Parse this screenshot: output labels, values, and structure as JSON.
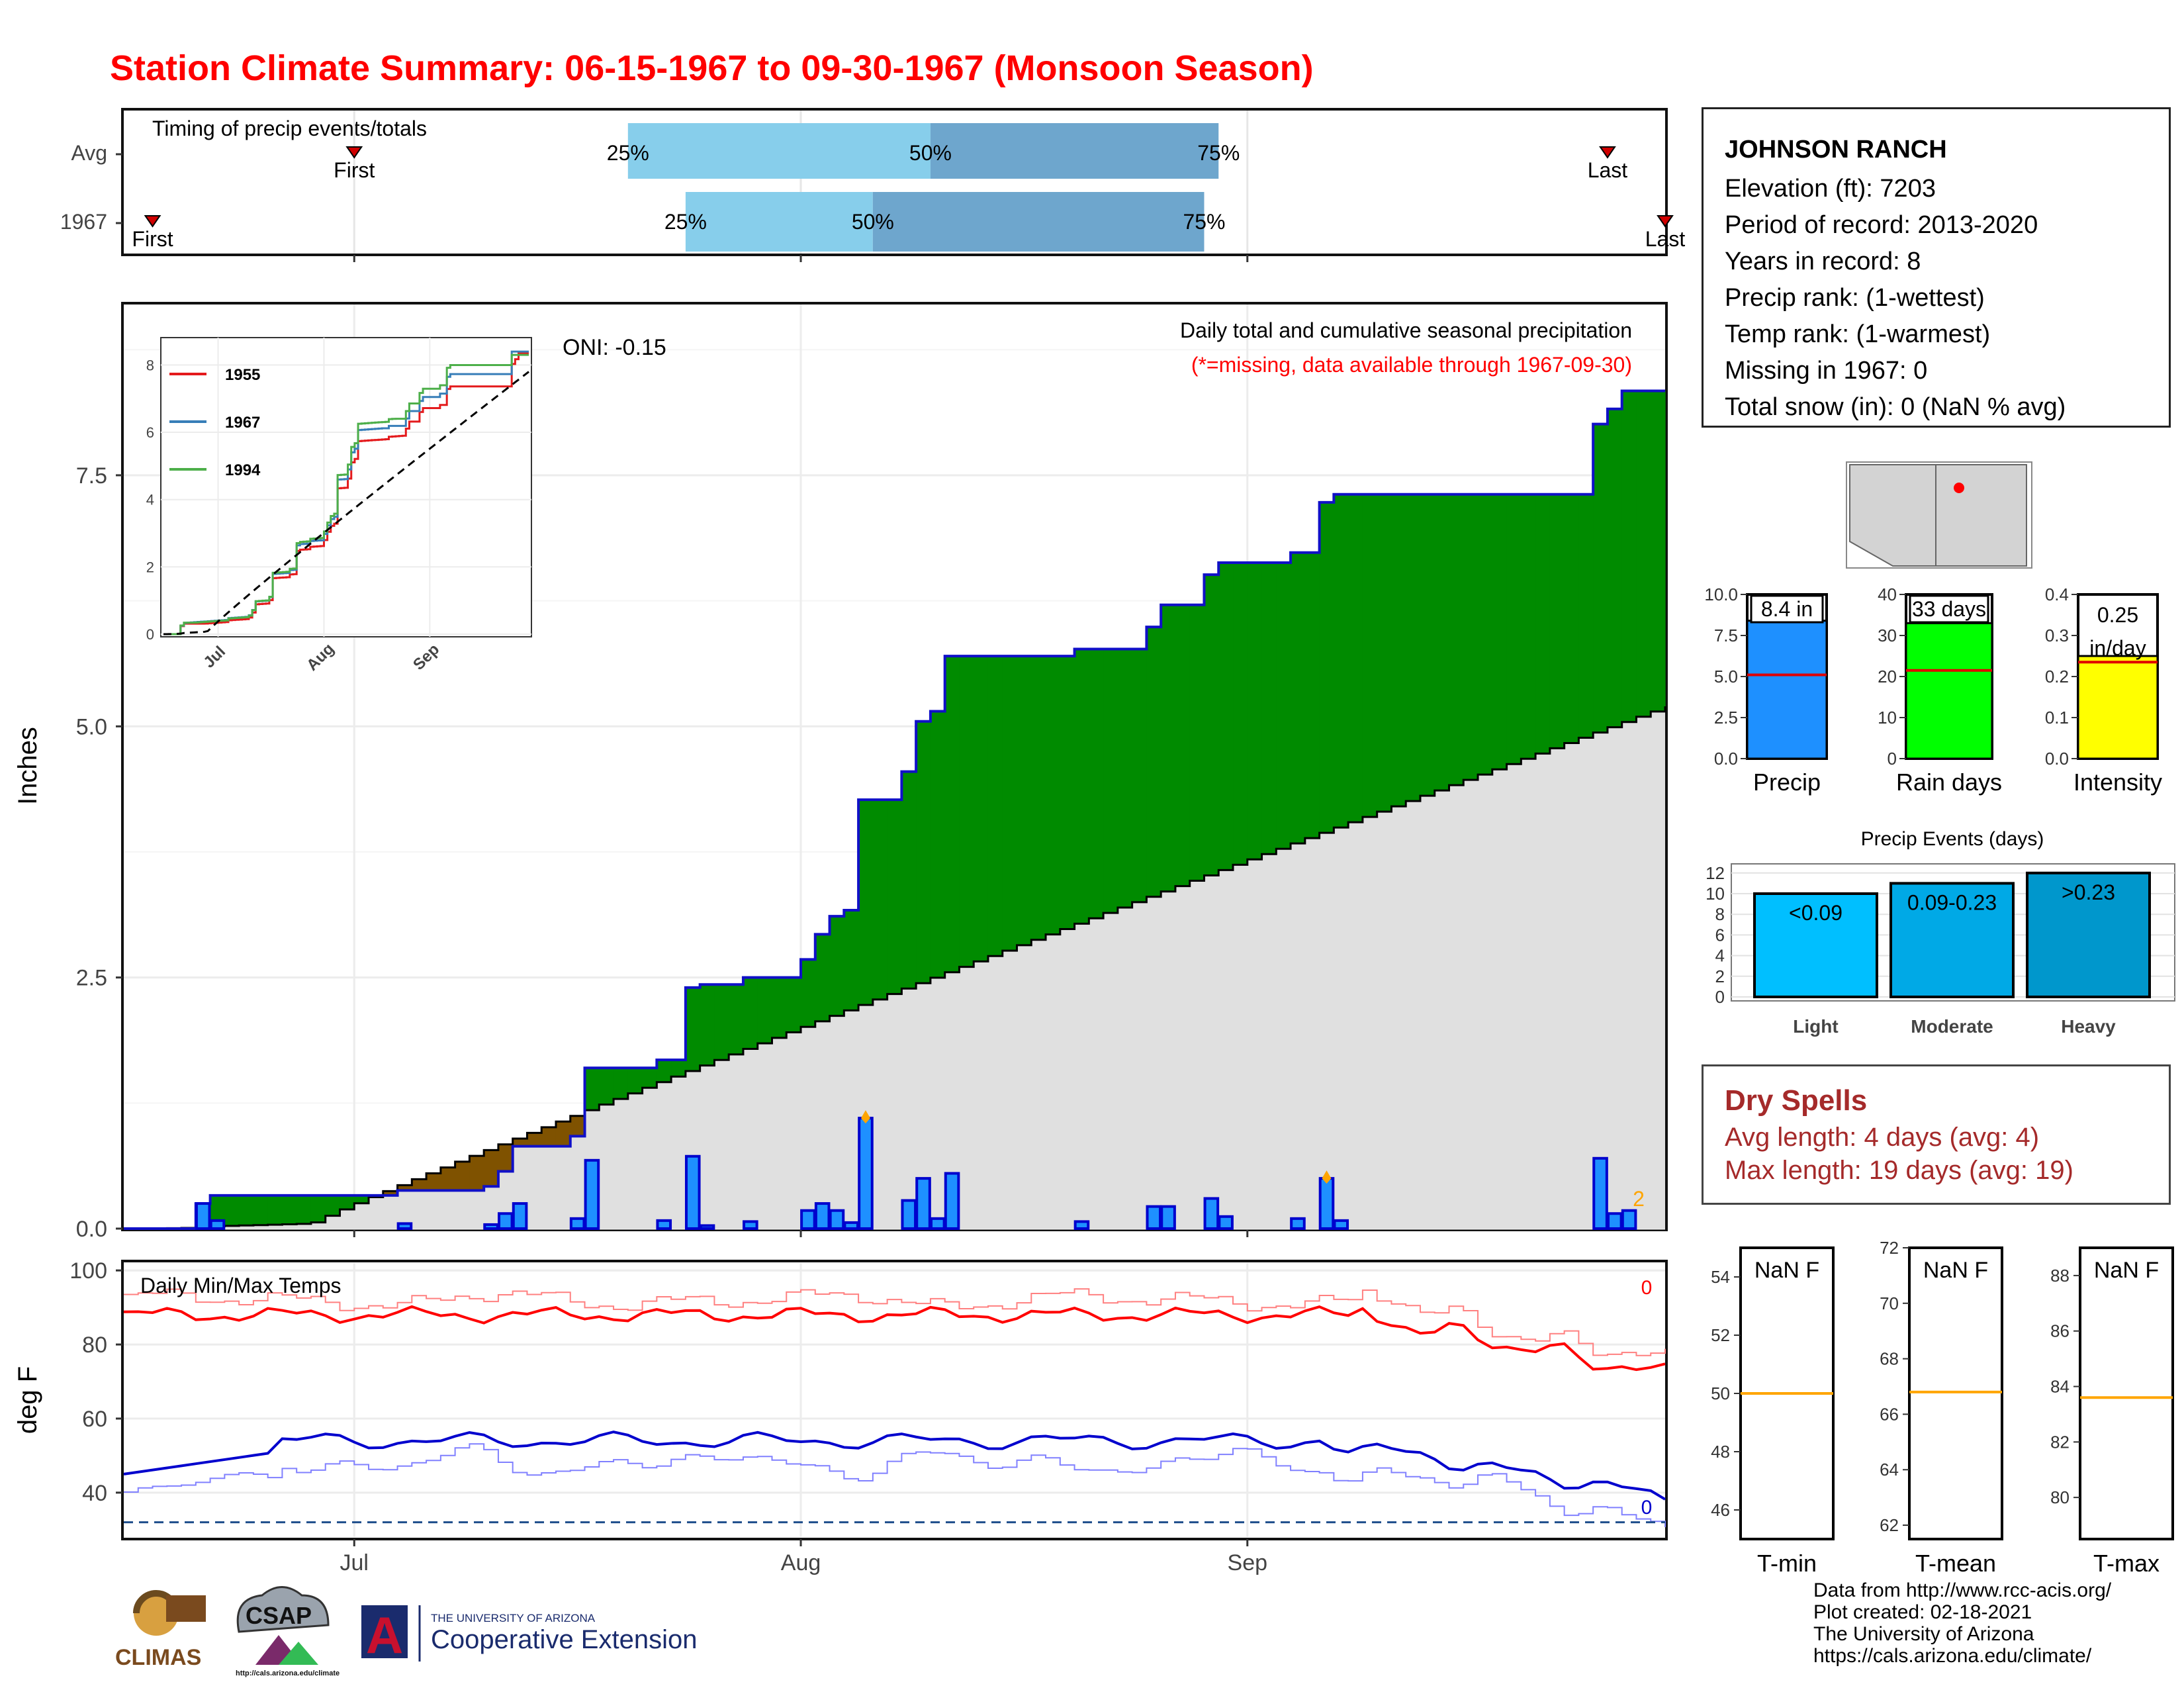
{
  "title": "Station Climate Summary: 06-15-1967 to 09-30-1967 (Monsoon Season)",
  "station": {
    "name": "JOHNSON RANCH",
    "lines": [
      "Elevation (ft): 7203",
      "Period of record: 2013-2020",
      "Years in record: 8",
      "Precip rank:  (1-wettest)",
      "Temp rank:  (1-warmest)",
      "Missing in 1967: 0",
      "Total snow (in): 0 (NaN % avg)"
    ]
  },
  "dry_spells": {
    "title": "Dry Spells",
    "avg_length": "Avg length: 4 days (avg: 4)",
    "max_length": "Max length: 19 days (avg: 19)"
  },
  "credits": [
    "Data from http://www.rcc-acis.org/",
    "Plot created: 02-18-2021",
    "The University of Arizona",
    "https://cals.arizona.edu/climate/"
  ],
  "logos": {
    "climas": "CLIMAS",
    "csap": "CSAP",
    "csap_url": "http://cals.arizona.edu/climate",
    "ua_letter": "A",
    "ua_line1": "THE UNIVERSITY OF ARIZONA",
    "ua_line2": "Cooperative Extension"
  },
  "colors": {
    "title": "#ff0000",
    "green": "#008b00",
    "brown": "#7f5200",
    "gray_fill": "#e0e0e0",
    "bar_blue": "#1e90ff",
    "bar_edge": "#0000cd",
    "light_blue": "#87ceeb",
    "mid_blue": "#6ea6cd",
    "max_temp": "#ff0000",
    "min_temp": "#0000cd",
    "dry_text": "#a52a2a"
  },
  "chart_data": [
    {
      "type": "timeline",
      "title": "Timing of precip events/totals",
      "rows": [
        {
          "label": "Avg",
          "first": "Jul",
          "last": "Last",
          "p25": "25%",
          "p50": "50%",
          "p75": "75%"
        },
        {
          "label": "1967",
          "first": "First",
          "last": "Last",
          "p25": "25%",
          "p50": "50%",
          "p75": "75%"
        }
      ],
      "row_values": [
        {
          "first": "1967-07-01",
          "p25": "1967-07-20",
          "p50": "1967-08-10",
          "p75": "1967-08-30",
          "last": "1967-09-26"
        },
        {
          "first": "1967-06-17",
          "p25": "1967-07-24",
          "p50": "1967-08-06",
          "p75": "1967-08-29",
          "last": "1967-09-30"
        }
      ],
      "first_label": "First",
      "last_label": "Last"
    },
    {
      "type": "area",
      "title": "Daily total and cumulative seasonal precipitation",
      "subtitle": "(*=missing, data available through 1967-09-30)",
      "annotation": "ONI: -0.15",
      "ylabel": "Inches",
      "ylim": [
        0,
        9.2
      ],
      "yticks": [
        0.0,
        2.5,
        5.0,
        7.5
      ],
      "ytick_labels": [
        "0.0",
        "2.5",
        "5.0",
        "7.5"
      ],
      "xticks": [
        "Jul",
        "Aug",
        "Sep"
      ],
      "x_start": "1967-06-15",
      "x_end": "1967-09-30",
      "missing_count_label": "2",
      "average_cumulative_end": 5.2,
      "daily_precip": [
        {
          "date": "1967-06-20",
          "value": 0.25
        },
        {
          "date": "1967-06-21",
          "value": 0.08
        },
        {
          "date": "1967-07-04",
          "value": 0.05
        },
        {
          "date": "1967-07-10",
          "value": 0.04
        },
        {
          "date": "1967-07-11",
          "value": 0.15
        },
        {
          "date": "1967-07-12",
          "value": 0.25
        },
        {
          "date": "1967-07-16",
          "value": 0.1
        },
        {
          "date": "1967-07-17",
          "value": 0.68
        },
        {
          "date": "1967-07-22",
          "value": 0.08
        },
        {
          "date": "1967-07-24",
          "value": 0.72
        },
        {
          "date": "1967-07-25",
          "value": 0.03
        },
        {
          "date": "1967-07-28",
          "value": 0.07
        },
        {
          "date": "1967-08-01",
          "value": 0.18
        },
        {
          "date": "1967-08-02",
          "value": 0.25
        },
        {
          "date": "1967-08-03",
          "value": 0.18
        },
        {
          "date": "1967-08-04",
          "value": 0.06
        },
        {
          "date": "1967-08-05",
          "value": 1.1
        },
        {
          "date": "1967-08-08",
          "value": 0.28
        },
        {
          "date": "1967-08-09",
          "value": 0.5
        },
        {
          "date": "1967-08-10",
          "value": 0.1
        },
        {
          "date": "1967-08-11",
          "value": 0.55
        },
        {
          "date": "1967-08-20",
          "value": 0.07
        },
        {
          "date": "1967-08-25",
          "value": 0.22
        },
        {
          "date": "1967-08-26",
          "value": 0.22
        },
        {
          "date": "1967-08-29",
          "value": 0.3
        },
        {
          "date": "1967-08-30",
          "value": 0.12
        },
        {
          "date": "1967-09-04",
          "value": 0.1
        },
        {
          "date": "1967-09-06",
          "value": 0.5
        },
        {
          "date": "1967-09-07",
          "value": 0.08
        },
        {
          "date": "1967-09-25",
          "value": 0.7
        },
        {
          "date": "1967-09-26",
          "value": 0.15
        },
        {
          "date": "1967-09-27",
          "value": 0.18
        }
      ],
      "marked_days": [
        "1967-08-05",
        "1967-09-06"
      ]
    },
    {
      "type": "line",
      "title": "",
      "series": [
        {
          "name": "1955",
          "end_value": 8.4
        },
        {
          "name": "1967",
          "end_value": 8.4
        },
        {
          "name": "1994",
          "end_value": 8.3
        }
      ],
      "xticks": [
        "Jul",
        "Aug",
        "Sep"
      ],
      "yticks": [
        "0",
        "2",
        "4",
        "6",
        "8"
      ],
      "ylim": [
        0,
        8.5
      ]
    },
    {
      "type": "bar",
      "title": "",
      "panels": [
        {
          "category": "Precip",
          "value": 8.4,
          "label": "8.4 in",
          "avg": 5.1,
          "ylim": [
            0,
            10
          ],
          "ticks": [
            "0.0",
            "2.5",
            "5.0",
            "7.5",
            "10.0"
          ],
          "color": "#1e90ff"
        },
        {
          "category": "Rain days",
          "value": 33,
          "label": "33 days",
          "avg": 21.5,
          "ylim": [
            0,
            40
          ],
          "ticks": [
            "0",
            "10",
            "20",
            "30",
            "40"
          ],
          "color": "#00ff00"
        },
        {
          "category": "Intensity",
          "value": 0.25,
          "label": "0.25",
          "label2": "in/day",
          "avg": 0.235,
          "ylim": [
            0,
            0.4
          ],
          "ticks": [
            "0.0",
            "0.1",
            "0.2",
            "0.3",
            "0.4"
          ],
          "color": "#ffff00"
        }
      ]
    },
    {
      "type": "bar",
      "title": "Precip Events (days)",
      "categories": [
        "Light",
        "Moderate",
        "Heavy"
      ],
      "labels": [
        "<0.09",
        "0.09-0.23",
        ">0.23"
      ],
      "values": [
        10,
        11,
        12
      ],
      "yticks": [
        "0",
        "2",
        "4",
        "6",
        "8",
        "10",
        "12"
      ],
      "ylim": [
        0,
        12.5
      ]
    },
    {
      "type": "line",
      "title": "Daily Min/Max Temps",
      "ylabel": "deg F",
      "ylim": [
        28,
        102
      ],
      "yticks": [
        "40",
        "60",
        "80",
        "100"
      ],
      "xticks": [
        "Jul",
        "Aug",
        "Sep"
      ],
      "freeze_line": 32,
      "max_count_label": "0",
      "min_count_label": "0",
      "series": [
        {
          "name": "Max 1967",
          "start": 86,
          "mid": 88,
          "end": 72
        },
        {
          "name": "Min 1967",
          "start": 45,
          "mid": 55,
          "end": 39
        }
      ]
    },
    {
      "type": "bar",
      "title": "",
      "panels": [
        {
          "category": "T-min",
          "label": "NaN F",
          "avg": 50.0,
          "ylim": [
            45,
            55
          ],
          "ticks": [
            "46",
            "48",
            "50",
            "52",
            "54"
          ]
        },
        {
          "category": "T-mean",
          "label": "NaN F",
          "avg": 66.8,
          "ylim": [
            61.5,
            72
          ],
          "ticks": [
            "62",
            "64",
            "66",
            "68",
            "70",
            "72"
          ]
        },
        {
          "category": "T-max",
          "label": "NaN F",
          "avg": 83.6,
          "ylim": [
            78.5,
            89
          ],
          "ticks": [
            "80",
            "82",
            "84",
            "86",
            "88"
          ]
        }
      ]
    }
  ]
}
